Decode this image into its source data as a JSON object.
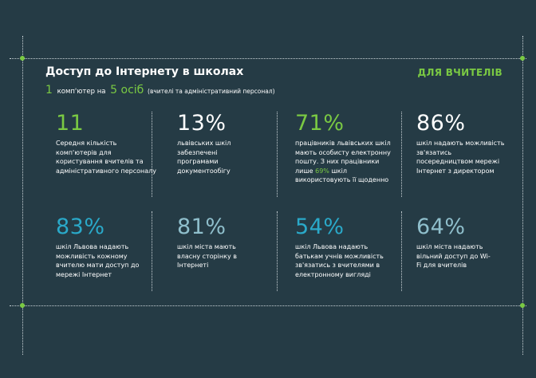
{
  "header": {
    "title": "Доступ до Інтернету в школах",
    "ratio_number_1": "1",
    "ratio_text_1": "комп'ютер на",
    "ratio_number_2": "5 осіб",
    "ratio_note": "(вчителі та адміністративний персонал)",
    "badge": "ДЛЯ ВЧИТЕЛІВ"
  },
  "stats": [
    {
      "value": "11",
      "desc": "Середня кількість комп'ютерів для користування вчителів та адміністративного персоналу"
    },
    {
      "value": "13%",
      "desc": "львівських шкіл забезпечені програмами документообігу"
    },
    {
      "value": "71%",
      "desc_before": "працівників львівських шкіл мають особисту електронну пошту. З них працівники лише",
      "desc_highlight": "69%",
      "desc_after": "шкіл використовують її щоденно"
    },
    {
      "value": "86%",
      "desc": "шкіл надають можливість зв'язатись посередництвом мережі Інтернет з директором"
    },
    {
      "value": "83%",
      "desc": "шкіл Львова надають можливість кожному вчителю мати доступ до мережі Інтернет"
    },
    {
      "value": "81%",
      "desc": "шкіл міста мають власну сторінку в Інтернеті"
    },
    {
      "value": "54%",
      "desc": "шкіл Львова надають батькам учнів можливість зв'язатись з вчителями в електронному вигляді"
    },
    {
      "value": "64%",
      "desc": "шкіл міста надають вільний доступ до Wi-Fi для вчителів"
    }
  ],
  "colors": {
    "background": "#253b45",
    "accent_green": "#7ac943",
    "accent_teal": "#2aa9c9",
    "muted_teal": "#8fbfcc",
    "dotted_line": "#c9d2d6"
  }
}
